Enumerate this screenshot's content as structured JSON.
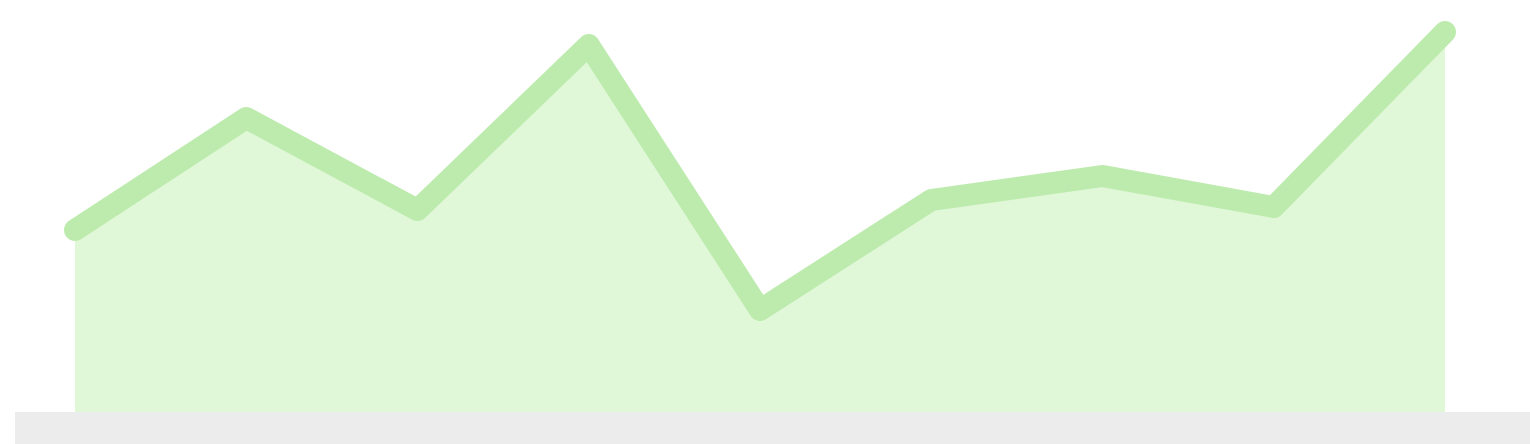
{
  "chart_data": {
    "type": "area",
    "values": [
      182,
      294,
      202,
      367,
      102,
      212,
      236,
      205,
      380
    ],
    "ylim": [
      0,
      400
    ],
    "color": "#bdebae",
    "fill": "#e0f8d8"
  }
}
